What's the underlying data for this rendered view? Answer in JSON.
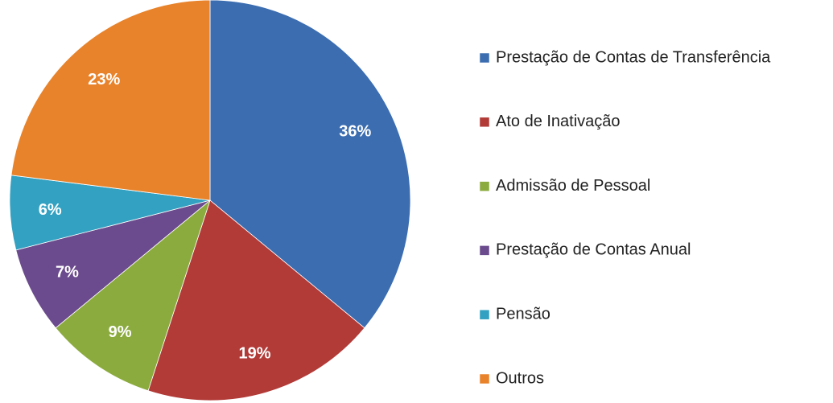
{
  "chart_data": {
    "type": "pie",
    "categories": [
      "Prestação de Contas de Transferência",
      "Ato de Inativação",
      "Admissão de Pessoal",
      "Prestação de Contas Anual",
      "Pensão",
      "Outros"
    ],
    "values": [
      36,
      19,
      9,
      7,
      6,
      23
    ],
    "value_labels": [
      "36%",
      "19%",
      "9%",
      "7%",
      "6%",
      "23%"
    ],
    "colors": [
      "#3b6db0",
      "#b23a37",
      "#8bab3e",
      "#6b4b8d",
      "#33a1c1",
      "#e8832b"
    ],
    "legend": "right"
  }
}
